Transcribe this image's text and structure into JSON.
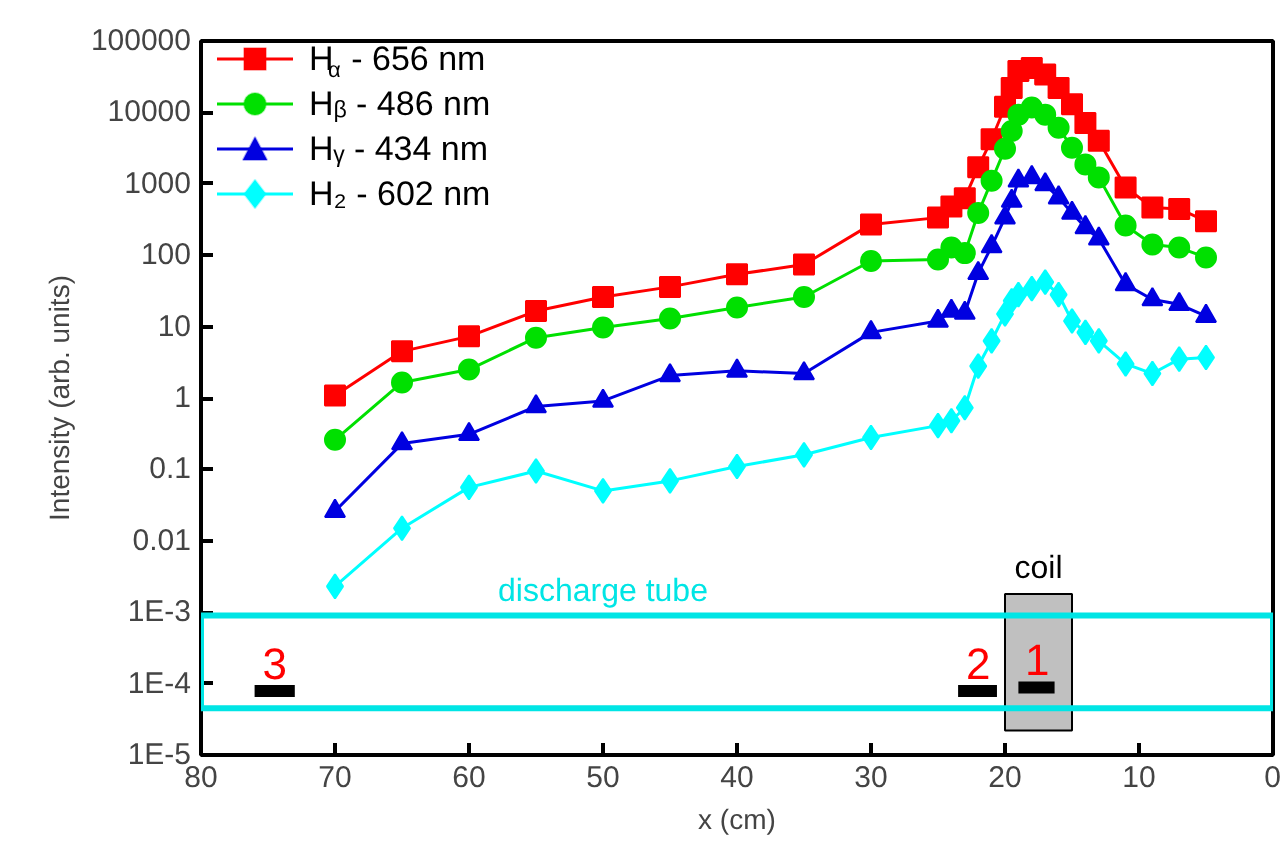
{
  "chart_data": {
    "type": "line",
    "xlabel": "x (cm)",
    "ylabel": "Intensity (arb. units)",
    "x": [
      70,
      65,
      60,
      55,
      50,
      45,
      40,
      35,
      30,
      25,
      24,
      23,
      22,
      21,
      20,
      19.5,
      19,
      18,
      17,
      16,
      15,
      14,
      13,
      11,
      9,
      7,
      5
    ],
    "series": [
      {
        "name": "H$_{α}$ - 656 nm",
        "color": "#ff0000",
        "marker": "square",
        "values": [
          1.08,
          4.5,
          7.3,
          16.5,
          26,
          36,
          54,
          74,
          270,
          336,
          480,
          630,
          1700,
          4200,
          12000,
          22000,
          38000,
          42000,
          34000,
          22000,
          13000,
          7100,
          4000,
          890,
          465,
          445,
          300
        ]
      },
      {
        "name": "Hᵦ - 486 nm",
        "color": "#00e000",
        "marker": "circle",
        "values": [
          0.26,
          1.65,
          2.5,
          7,
          9.7,
          13,
          18.5,
          26,
          83,
          87,
          128,
          107,
          390,
          1100,
          3100,
          5500,
          9300,
          11700,
          9300,
          6100,
          3200,
          1870,
          1230,
          260,
          141,
          128,
          93
        ]
      },
      {
        "name": "Hᵧ - 434 nm",
        "color": "#0000e0",
        "marker": "triangle",
        "values": [
          0.026,
          0.23,
          0.31,
          0.76,
          0.91,
          2.06,
          2.4,
          2.2,
          8.3,
          12,
          16.5,
          15.5,
          56,
          133,
          335,
          575,
          1100,
          1230,
          980,
          640,
          390,
          245,
          170,
          39,
          24,
          20.5,
          14
        ]
      },
      {
        "name": "H₂ - 602 nm",
        "color": "#00ffff",
        "marker": "diamond",
        "values": [
          0.0023,
          0.015,
          0.056,
          0.095,
          0.05,
          0.069,
          0.11,
          0.16,
          0.28,
          0.41,
          0.48,
          0.73,
          2.8,
          6.3,
          15,
          23,
          28,
          34,
          42,
          28,
          12,
          8.3,
          6.3,
          3.0,
          2.2,
          3.5,
          3.7
        ]
      }
    ],
    "xlim": [
      80,
      0
    ],
    "xticks": [
      80,
      70,
      60,
      50,
      40,
      30,
      20,
      10,
      0
    ],
    "ylim": [
      1e-05,
      100000
    ],
    "log": true,
    "yticks": [
      {
        "value": 1e-05,
        "label": "1E-5"
      },
      {
        "value": 0.0001,
        "label": "1E-4"
      },
      {
        "value": 0.001,
        "label": "1E-3"
      },
      {
        "value": 0.01,
        "label": "0.01"
      },
      {
        "value": 0.1,
        "label": "0.1"
      },
      1,
      10,
      100,
      1000,
      10000,
      100000
    ],
    "legend": "top left",
    "grid": false,
    "line_style": "solid",
    "annotations": [
      "discharge tube",
      "coil",
      "3",
      "2",
      "1"
    ]
  }
}
